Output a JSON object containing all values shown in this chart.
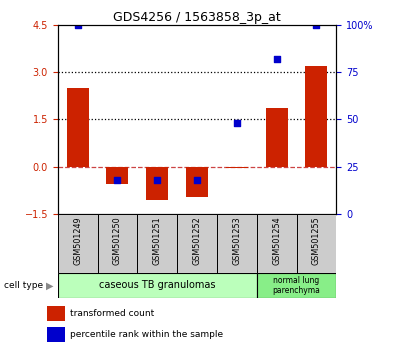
{
  "title": "GDS4256 / 1563858_3p_at",
  "samples": [
    "GSM501249",
    "GSM501250",
    "GSM501251",
    "GSM501252",
    "GSM501253",
    "GSM501254",
    "GSM501255"
  ],
  "transformed_count": [
    2.5,
    -0.55,
    -1.05,
    -0.95,
    -0.05,
    1.85,
    3.2
  ],
  "percentile_rank": [
    100,
    18,
    18,
    18,
    48,
    82,
    100
  ],
  "ylim_left": [
    -1.5,
    4.5
  ],
  "ylim_right": [
    0,
    100
  ],
  "bar_color": "#cc2200",
  "dot_color": "#0000cc",
  "bar_width": 0.55,
  "left_tick_color": "#cc2200",
  "right_tick_color": "#0000cc",
  "hline_zero_color": "#cc4444",
  "hline_zero_style": "--",
  "hline_dot_color": "black",
  "hline_dot_style": ":",
  "legend_items": [
    {
      "label": "transformed count",
      "color": "#cc2200"
    },
    {
      "label": "percentile rank within the sample",
      "color": "#0000cc"
    }
  ],
  "cell_type_label": "cell type",
  "group1_label": "caseous TB granulomas",
  "group1_color": "#bbffbb",
  "group2_label": "normal lung\nparenchyma",
  "group2_color": "#88ee88",
  "sample_box_color": "#cccccc",
  "right_ytick_labels": [
    "0",
    "25",
    "50",
    "75",
    "100%"
  ]
}
